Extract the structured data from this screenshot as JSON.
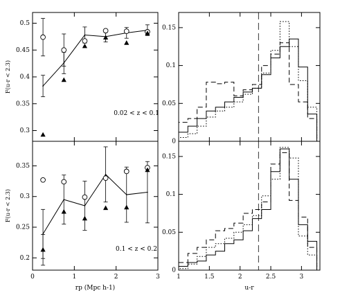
{
  "chart_data": [
    {
      "type": "scatter",
      "panel": "top-left",
      "xlim": [
        0,
        3
      ],
      "ylim": [
        0.28,
        0.52
      ],
      "yticks": [
        0.3,
        0.35,
        0.4,
        0.45,
        0.5
      ],
      "yticklabels": [
        "0.3",
        "0.35",
        "0.4",
        "0.45",
        "0.5"
      ],
      "ylabel": "F(u-r < 2.3)",
      "annotation": "0.02 < z < 0.1",
      "series": [
        {
          "marker": "line-errorbars",
          "x": [
            0.25,
            0.75,
            1.25,
            1.75,
            2.25,
            2.75
          ],
          "y": [
            0.383,
            0.426,
            0.478,
            0.475,
            0.482,
            0.487
          ],
          "err": [
            0.02,
            0.02,
            0.015,
            0.01,
            0.01,
            0.01
          ]
        },
        {
          "marker": "open-circle",
          "x": [
            0.25,
            0.75,
            1.25,
            1.75,
            2.25,
            2.75
          ],
          "y": [
            0.474,
            0.45,
            0.467,
            0.486,
            0.485,
            0.484
          ],
          "err": [
            0.035,
            0.03,
            0.0,
            0.0,
            0.0,
            0.0
          ]
        },
        {
          "marker": "filled-triangle",
          "x": [
            0.25,
            0.75,
            1.25,
            1.75,
            2.25,
            2.75
          ],
          "y": [
            0.292,
            0.394,
            0.457,
            0.473,
            0.463,
            0.481
          ],
          "err": [
            0.0,
            0.0,
            0.0,
            0.0,
            0.0,
            0.0
          ]
        }
      ]
    },
    {
      "type": "scatter",
      "panel": "bottom-left",
      "xlim": [
        0,
        3
      ],
      "ylim": [
        0.18,
        0.39
      ],
      "xticks": [
        0,
        1,
        2,
        3
      ],
      "xticklabels": [
        "0",
        "1",
        "2",
        "3"
      ],
      "yticks": [
        0.2,
        0.25,
        0.3,
        0.35
      ],
      "yticklabels": [
        "0.2",
        "0.25",
        "0.3",
        "0.35"
      ],
      "xlabel": "rp (Mpc h-1)",
      "ylabel": "F(u-r < 2.3)",
      "annotation": "0.1 < z < 0.2",
      "series": [
        {
          "marker": "line-errorbars",
          "x": [
            0.25,
            0.75,
            1.25,
            1.75,
            2.25,
            2.75
          ],
          "y": [
            0.239,
            0.295,
            0.285,
            0.336,
            0.303,
            0.307
          ],
          "err": [
            0.04,
            0.04,
            0.04,
            0.045,
            0.045,
            0.05
          ]
        },
        {
          "marker": "open-circle",
          "x": [
            0.25,
            0.75,
            1.25,
            1.75,
            2.25,
            2.75
          ],
          "y": [
            0.327,
            0.324,
            0.299,
            0.33,
            0.341,
            0.347
          ],
          "err": [
            0.0,
            0.0,
            0.0,
            0.0,
            0.0,
            0.0
          ]
        },
        {
          "marker": "filled-triangle",
          "x": [
            0.25,
            0.75,
            1.25,
            1.75,
            2.25,
            2.75
          ],
          "y": [
            0.213,
            0.275,
            0.264,
            0.281,
            0.282,
            0.343
          ],
          "err": [
            0.025,
            0.0,
            0.0,
            0.0,
            0.0,
            0.0
          ]
        }
      ]
    },
    {
      "type": "line",
      "panel": "top-right",
      "step": true,
      "xlim": [
        1,
        3.3
      ],
      "ylim": [
        0,
        0.17
      ],
      "yticks": [
        0,
        0.05,
        0.1,
        0.15
      ],
      "yticklabels": [
        "0",
        "0.05",
        "0.1",
        "0.15"
      ],
      "vline": 2.3,
      "bin_edges": [
        1.0,
        1.15,
        1.3,
        1.45,
        1.6,
        1.75,
        1.9,
        2.05,
        2.2,
        2.35,
        2.5,
        2.65,
        2.8,
        2.95,
        3.1,
        3.25
      ],
      "series": [
        {
          "style": "solid",
          "values": [
            0.012,
            0.02,
            0.03,
            0.04,
            0.045,
            0.052,
            0.058,
            0.065,
            0.07,
            0.088,
            0.11,
            0.125,
            0.135,
            0.098,
            0.036
          ]
        },
        {
          "style": "dashed",
          "values": [
            0.025,
            0.03,
            0.045,
            0.078,
            0.076,
            0.078,
            0.06,
            0.068,
            0.075,
            0.1,
            0.115,
            0.13,
            0.075,
            0.052,
            0.03
          ]
        },
        {
          "style": "dotted",
          "values": [
            0.005,
            0.01,
            0.02,
            0.032,
            0.04,
            0.045,
            0.052,
            0.062,
            0.07,
            0.09,
            0.12,
            0.158,
            0.125,
            0.08,
            0.045
          ]
        }
      ]
    },
    {
      "type": "line",
      "panel": "bottom-right",
      "step": true,
      "xlim": [
        1,
        3.3
      ],
      "ylim": [
        0,
        0.17
      ],
      "xticks": [
        1,
        1.5,
        2,
        2.5,
        3
      ],
      "xticklabels": [
        "1",
        "1.5",
        "2",
        "2.5",
        "3"
      ],
      "yticks": [
        0,
        0.05,
        0.1,
        0.15
      ],
      "yticklabels": [
        "0",
        "0.05",
        "0.1",
        "0.15"
      ],
      "xlabel": "u-r",
      "vline": 2.3,
      "bin_edges": [
        1.0,
        1.15,
        1.3,
        1.45,
        1.6,
        1.75,
        1.9,
        2.05,
        2.2,
        2.35,
        2.5,
        2.65,
        2.8,
        2.95,
        3.1,
        3.25
      ],
      "series": [
        {
          "style": "solid",
          "values": [
            0.005,
            0.01,
            0.012,
            0.02,
            0.025,
            0.035,
            0.04,
            0.052,
            0.068,
            0.08,
            0.13,
            0.16,
            0.12,
            0.06,
            0.038
          ]
        },
        {
          "style": "dashed",
          "values": [
            0.01,
            0.022,
            0.03,
            0.04,
            0.052,
            0.055,
            0.062,
            0.075,
            0.08,
            0.09,
            0.14,
            0.155,
            0.092,
            0.07,
            0.03
          ]
        },
        {
          "style": "dotted",
          "values": [
            0.002,
            0.008,
            0.018,
            0.03,
            0.035,
            0.042,
            0.05,
            0.06,
            0.072,
            0.098,
            0.12,
            0.162,
            0.148,
            0.045,
            0.02
          ]
        }
      ]
    }
  ]
}
